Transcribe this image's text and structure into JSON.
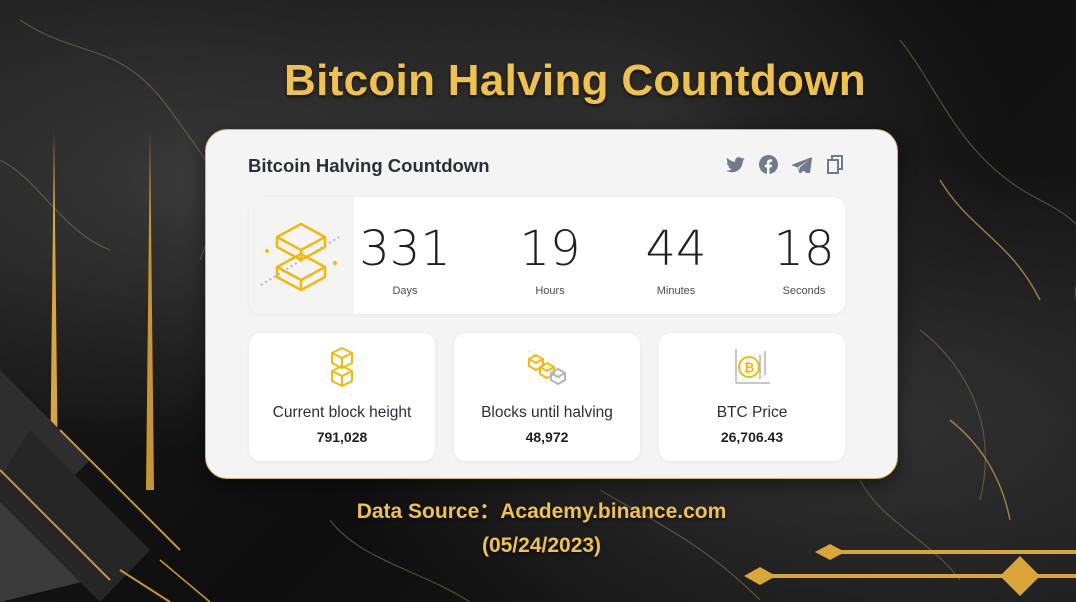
{
  "headline": "Bitcoin Halving Countdown",
  "card": {
    "title": "Bitcoin Halving Countdown",
    "share_icons": [
      "twitter-icon",
      "facebook-icon",
      "telegram-icon",
      "copy-icon"
    ]
  },
  "countdown": {
    "days": {
      "value": "331",
      "label": "Days"
    },
    "hours": {
      "value": "19",
      "label": "Hours"
    },
    "minutes": {
      "value": "44",
      "label": "Minutes"
    },
    "seconds": {
      "value": "18",
      "label": "Seconds"
    }
  },
  "stats": [
    {
      "label": "Current block height",
      "value": "791,028",
      "icon": "block-stack-icon"
    },
    {
      "label": "Blocks until halving",
      "value": "48,972",
      "icon": "blocks-cluster-icon"
    },
    {
      "label": "BTC Price",
      "value": "26,706.43",
      "icon": "bitcoin-chart-icon"
    }
  ],
  "source": {
    "line1": "Data Source：Academy.binance.com",
    "line2": "(05/24/2023)"
  },
  "colors": {
    "accent": "#f0c14b",
    "card_bg": "#f4f4f4",
    "text_dark": "#1e2026",
    "icon_gray": "#707a8a"
  }
}
